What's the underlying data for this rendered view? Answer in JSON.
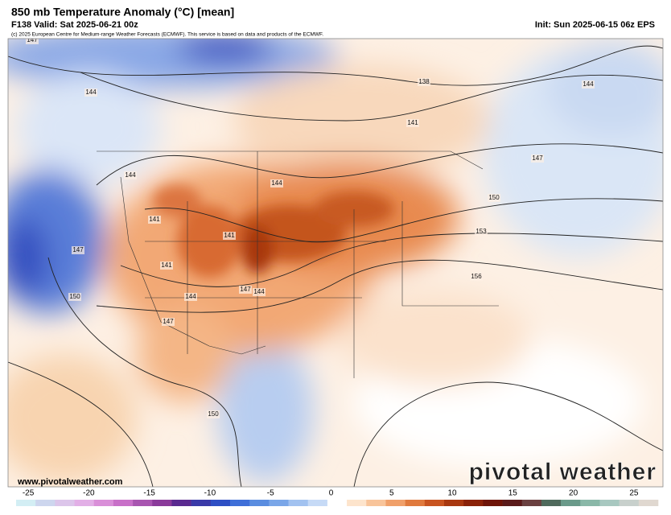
{
  "header": {
    "title": "850 mb Temperature Anomaly (°C) [mean]",
    "valid": "F138 Valid: Sat 2025-06-21 00z",
    "init": "Init: Sun 2025-06-15 06z EPS",
    "copyright": "(c) 2025 European Centre for Medium-range Weather Forecasts (ECMWF). This service is based on data and products of the ECMWF."
  },
  "map": {
    "contour_labels": [
      147,
      144,
      138,
      141,
      144,
      144,
      144,
      147,
      141,
      141,
      150,
      153,
      147,
      141,
      156,
      150,
      144,
      147,
      144,
      147,
      150
    ]
  },
  "footer": {
    "website": "www.pivotalweather.com",
    "logo": "pivotal weather"
  },
  "colorbar": {
    "lim": [
      -26,
      27
    ],
    "ticks": [
      -25,
      -20,
      -15,
      -10,
      -5,
      0,
      5,
      10,
      15,
      20,
      25
    ],
    "colors": [
      "#d3eef4",
      "#cdd6ee",
      "#dcc5ea",
      "#e2afe6",
      "#d98fd8",
      "#c870c8",
      "#a855b0",
      "#8a3a9a",
      "#5a2a90",
      "#3a3aa8",
      "#2e4fc4",
      "#3f6fd8",
      "#5a8de0",
      "#7aa6e8",
      "#a2c2f0",
      "#c6daf6",
      "#ffffff",
      "#fde4cc",
      "#f8c49a",
      "#f0a06a",
      "#e07a3e",
      "#c85420",
      "#a83810",
      "#8a2208",
      "#6e1408",
      "#5a1a1a",
      "#6a4040",
      "#4f6a5c",
      "#6a9a8a",
      "#8ab8a8",
      "#a8c8c0",
      "#c8d0cc",
      "#e0d8d0"
    ]
  }
}
